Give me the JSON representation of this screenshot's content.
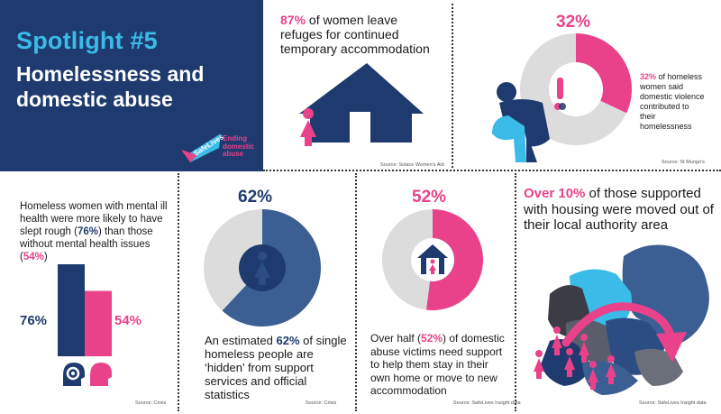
{
  "header": {
    "spotlight": "Spotlight #5",
    "title_line1": "Homelessness and",
    "title_line2": "domestic abuse",
    "logo_badge": "SafeLives",
    "logo_line1": "Ending",
    "logo_line2": "domestic",
    "logo_line3": "abuse"
  },
  "panel_refuges": {
    "stat": "87%",
    "text": " of women leave refuges for continued temporary accommodation",
    "source": "Source: Solace Women's Aid"
  },
  "panel_violence": {
    "stat": "32%",
    "stat_inline": "32%",
    "text": " of homeless women said domestic violence contributed to their homelessness",
    "source": "Source: St Mungo's"
  },
  "panel_mental": {
    "text_a": "Homeless women with mental ill health were more likely to have slept rough (",
    "stat_a": "76%",
    "text_b": ") than those without mental health issues (",
    "stat_b": "54%",
    "text_c": ")",
    "source": "Source: Crisis"
  },
  "panel_hidden": {
    "stat": "62%",
    "text_a": "An estimated ",
    "stat_inline": "62%",
    "text_b": " of single homeless people are ‘hidden’ from support services and official statistics",
    "source": "Source: Crisis"
  },
  "panel_support": {
    "stat": "52%",
    "text_a": "Over half (",
    "stat_inline": "52%",
    "text_b": ") of domestic abuse victims need support to help them stay in their own home or move to new accommodation",
    "source": "Source: SafeLives Insight data"
  },
  "panel_moved": {
    "stat": "Over 10%",
    "text": " of those supported with housing were moved out of their local authority area",
    "source": "Source: SafeLives Insight data"
  },
  "colors": {
    "navy": "#1e3a6e",
    "pink": "#e9428b",
    "cyan": "#3bbbe8",
    "grey": "#dcdcdc",
    "steel": "#3c5f93"
  },
  "chart_data": [
    {
      "type": "pie",
      "categories": [
        "said domestic violence contributed",
        "other"
      ],
      "values": [
        32,
        68
      ],
      "data_labels": [
        "32%"
      ]
    },
    {
      "type": "bar",
      "categories": [
        "with mental ill health",
        "without mental health issues"
      ],
      "values": [
        76,
        54
      ],
      "data_labels": [
        "76%",
        "54%"
      ]
    },
    {
      "type": "pie",
      "categories": [
        "hidden",
        "other"
      ],
      "values": [
        62,
        38
      ],
      "data_labels": [
        "62%"
      ]
    },
    {
      "type": "pie",
      "categories": [
        "need support",
        "other"
      ],
      "values": [
        52,
        48
      ],
      "data_labels": [
        "52%"
      ]
    }
  ]
}
